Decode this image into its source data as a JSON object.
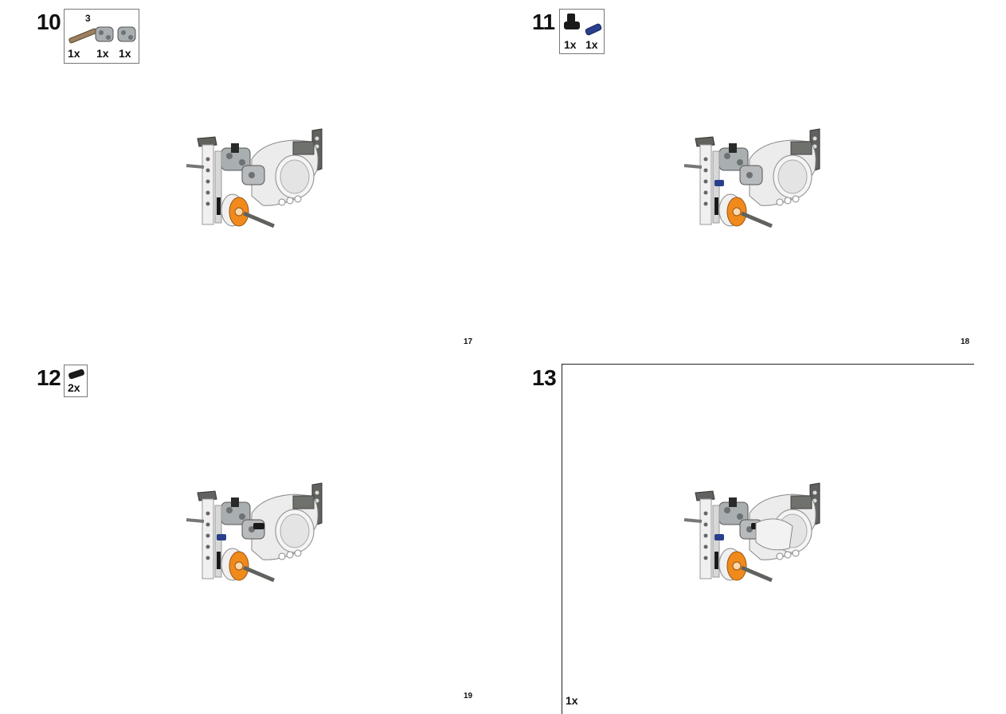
{
  "steps": [
    {
      "number": "10",
      "parts": [
        {
          "qty": "1x",
          "extra": "3"
        },
        {
          "qty": "1x"
        },
        {
          "qty": "1x"
        }
      ]
    },
    {
      "number": "11",
      "parts": [
        {
          "qty": "1x"
        },
        {
          "qty": "1x"
        }
      ]
    },
    {
      "number": "12",
      "parts": [
        {
          "qty": "2x"
        }
      ]
    },
    {
      "number": "13",
      "parts": [
        {
          "qty": "1x"
        }
      ]
    }
  ],
  "page_numbers": [
    "17",
    "18",
    "19"
  ],
  "colors": {
    "orange": "#f08a1c",
    "white_part": "#ececec",
    "dark_gray": "#5f625d",
    "light_gray": "#a9aeb1",
    "black": "#1a1a1a",
    "blue": "#2a3f8c",
    "tan": "#9b8060"
  },
  "icons": {
    "model": "assembly-model-icon",
    "axle": "axle-part-icon",
    "connector": "connector-part-icon",
    "pin": "pin-part-icon"
  }
}
